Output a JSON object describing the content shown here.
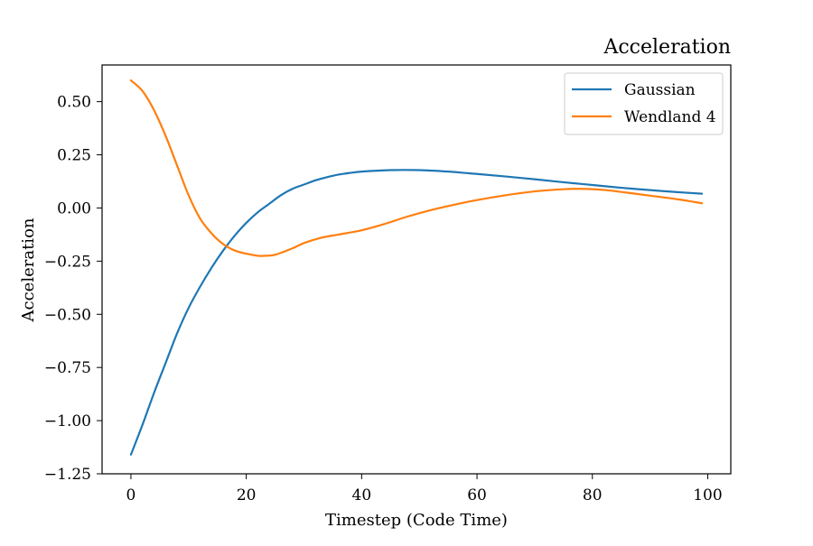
{
  "chart_data": {
    "type": "line",
    "title": "Acceleration",
    "xlabel": "Timestep (Code Time)",
    "ylabel": "Acceleration",
    "xlim": [
      -5,
      104
    ],
    "ylim": [
      -1.25,
      0.6724
    ],
    "xticks": [
      0,
      20,
      40,
      60,
      80,
      100
    ],
    "xtick_labels": [
      "0",
      "20",
      "40",
      "60",
      "80",
      "100"
    ],
    "yticks": [
      -1.25,
      -1.0,
      -0.75,
      -0.5,
      -0.25,
      0.0,
      0.25,
      0.5
    ],
    "ytick_labels": [
      "−1.25",
      "−1.00",
      "−0.75",
      "−0.50",
      "−0.25",
      "0.00",
      "0.25",
      "0.50"
    ],
    "grid": false,
    "legend_position": "top-right",
    "series": [
      {
        "name": "Gaussian",
        "color": "#1f77b4",
        "x": [
          0,
          2,
          4,
          6,
          8,
          10,
          12,
          14,
          16,
          18,
          20,
          22,
          24,
          26,
          28,
          30,
          32,
          34,
          36,
          38,
          40,
          45,
          50,
          55,
          60,
          65,
          70,
          75,
          80,
          85,
          90,
          95,
          99
        ],
        "y": [
          -1.16,
          -1.02,
          -0.87,
          -0.73,
          -0.59,
          -0.47,
          -0.37,
          -0.28,
          -0.2,
          -0.13,
          -0.07,
          -0.02,
          0.02,
          0.06,
          0.09,
          0.11,
          0.13,
          0.145,
          0.157,
          0.165,
          0.171,
          0.178,
          0.178,
          0.171,
          0.16,
          0.148,
          0.135,
          0.121,
          0.108,
          0.095,
          0.084,
          0.074,
          0.067
        ]
      },
      {
        "name": "Wendland 4",
        "color": "#ff7f0e",
        "x": [
          0,
          2,
          4,
          6,
          8,
          10,
          12,
          14,
          16,
          18,
          20,
          22,
          23,
          25,
          28,
          30,
          33,
          36,
          40,
          44,
          48,
          52,
          56,
          60,
          65,
          70,
          75,
          78,
          82,
          86,
          90,
          95,
          99
        ],
        "y": [
          0.6,
          0.55,
          0.46,
          0.34,
          0.2,
          0.06,
          -0.05,
          -0.12,
          -0.17,
          -0.2,
          -0.215,
          -0.225,
          -0.225,
          -0.22,
          -0.19,
          -0.165,
          -0.14,
          -0.125,
          -0.105,
          -0.075,
          -0.04,
          -0.01,
          0.015,
          0.037,
          0.06,
          0.078,
          0.088,
          0.09,
          0.085,
          0.072,
          0.058,
          0.04,
          0.022
        ]
      }
    ]
  }
}
